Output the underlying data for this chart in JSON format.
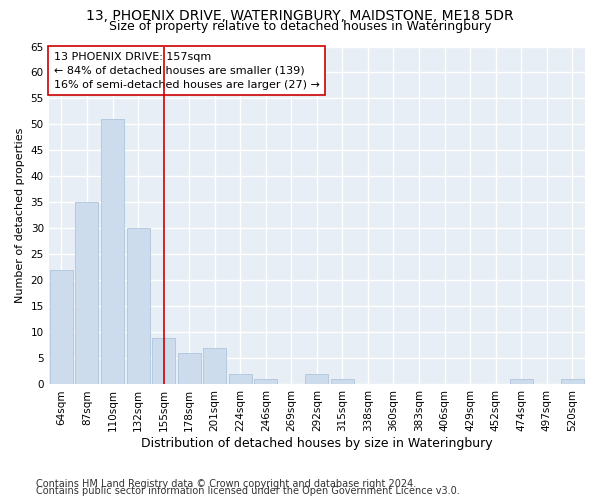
{
  "title1": "13, PHOENIX DRIVE, WATERINGBURY, MAIDSTONE, ME18 5DR",
  "title2": "Size of property relative to detached houses in Wateringbury",
  "xlabel": "Distribution of detached houses by size in Wateringbury",
  "ylabel": "Number of detached properties",
  "categories": [
    "64sqm",
    "87sqm",
    "110sqm",
    "132sqm",
    "155sqm",
    "178sqm",
    "201sqm",
    "224sqm",
    "246sqm",
    "269sqm",
    "292sqm",
    "315sqm",
    "338sqm",
    "360sqm",
    "383sqm",
    "406sqm",
    "429sqm",
    "452sqm",
    "474sqm",
    "497sqm",
    "520sqm"
  ],
  "values": [
    22,
    35,
    51,
    30,
    9,
    6,
    7,
    2,
    1,
    0,
    2,
    1,
    0,
    0,
    0,
    0,
    0,
    0,
    1,
    0,
    1
  ],
  "bar_color": "#cddcec",
  "bar_edge_color": "#aec6de",
  "vline_x_idx": 4,
  "vline_color": "#cc0000",
  "annotation_line1": "13 PHOENIX DRIVE: 157sqm",
  "annotation_line2": "← 84% of detached houses are smaller (139)",
  "annotation_line3": "16% of semi-detached houses are larger (27) →",
  "annotation_box_color": "#ffffff",
  "annotation_box_edge": "#cc0000",
  "ylim": [
    0,
    65
  ],
  "yticks": [
    0,
    5,
    10,
    15,
    20,
    25,
    30,
    35,
    40,
    45,
    50,
    55,
    60,
    65
  ],
  "footer1": "Contains HM Land Registry data © Crown copyright and database right 2024.",
  "footer2": "Contains public sector information licensed under the Open Government Licence v3.0.",
  "bg_color": "#ffffff",
  "plot_bg_color": "#e8eef5",
  "grid_color": "#ffffff",
  "title1_fontsize": 10,
  "title2_fontsize": 9,
  "xlabel_fontsize": 9,
  "ylabel_fontsize": 8,
  "tick_fontsize": 7.5,
  "annotation_fontsize": 8,
  "footer_fontsize": 7
}
